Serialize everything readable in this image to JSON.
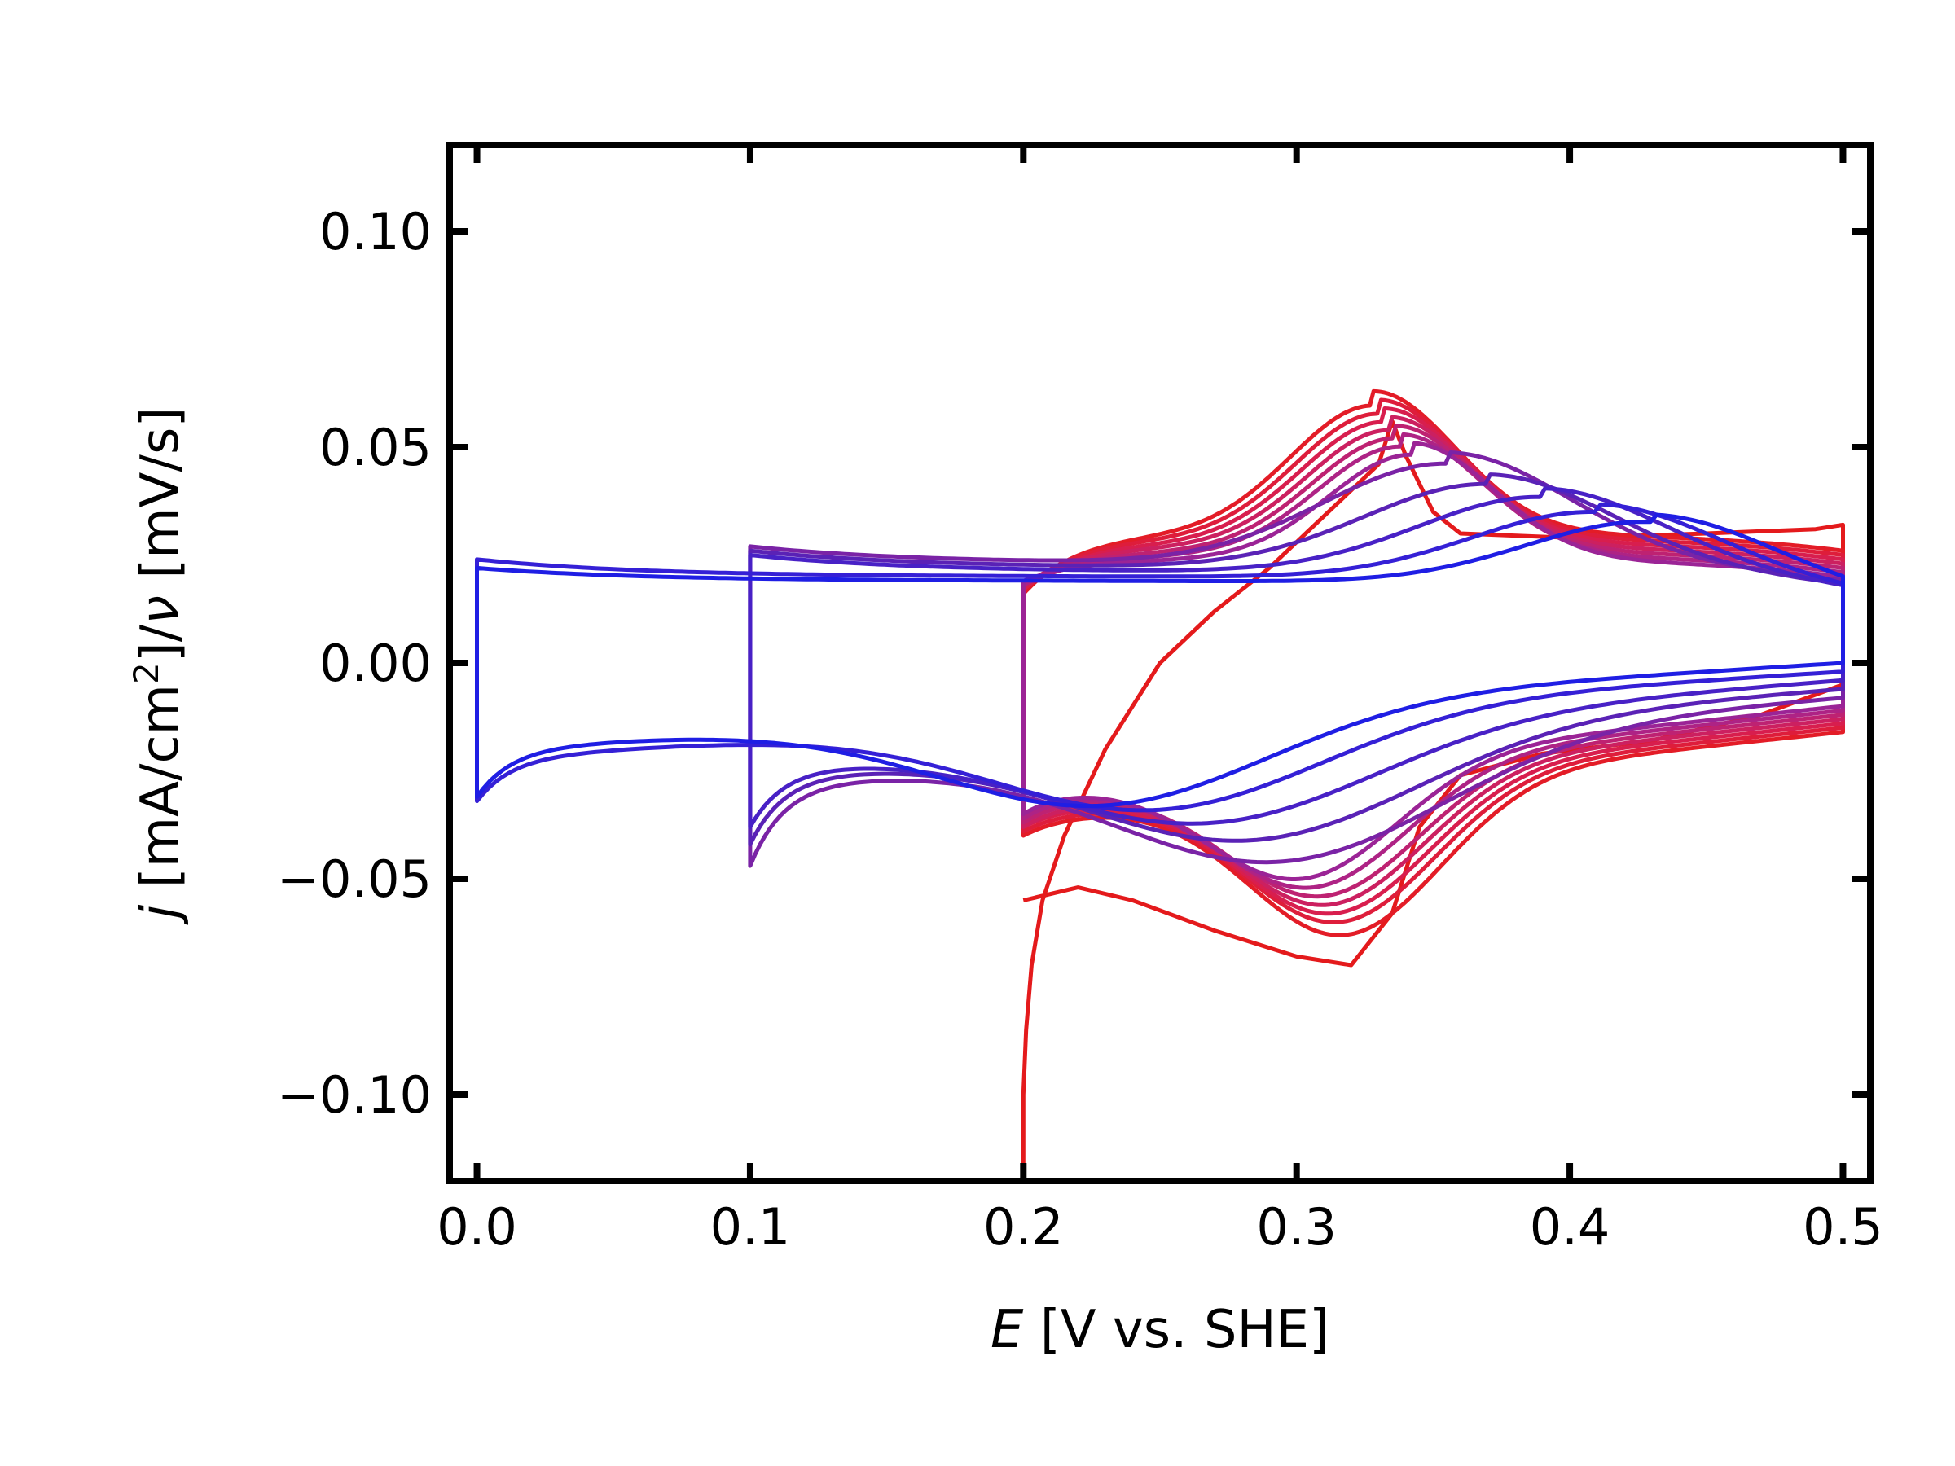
{
  "chart_data": {
    "type": "line",
    "title": "",
    "xlabel": {
      "symbol": "E",
      "rest": " [V vs. SHE]"
    },
    "ylabel": {
      "symbol": "j",
      "part1": " [mA/cm",
      "sup": "2",
      "part2": "]/",
      "nu": "ν",
      "part3": " [mV/s]"
    },
    "xlim": [
      -0.01,
      0.51
    ],
    "ylim": [
      -0.12,
      0.12
    ],
    "x_ticks": [
      {
        "value": 0.0,
        "label": "0.0"
      },
      {
        "value": 0.1,
        "label": "0.1"
      },
      {
        "value": 0.2,
        "label": "0.2"
      },
      {
        "value": 0.3,
        "label": "0.3"
      },
      {
        "value": 0.4,
        "label": "0.4"
      },
      {
        "value": 0.5,
        "label": "0.5"
      }
    ],
    "y_ticks": [
      {
        "value": -0.1,
        "label": "−0.10"
      },
      {
        "value": -0.05,
        "label": "−0.05"
      },
      {
        "value": 0.0,
        "label": "0.00"
      },
      {
        "value": 0.05,
        "label": "0.05"
      },
      {
        "value": 0.1,
        "label": "0.10"
      }
    ],
    "grid": false,
    "legend": "none",
    "color_gradient": {
      "start": "#e41a1c",
      "end": "#1a1ae4"
    },
    "series": [
      {
        "color": "#e41a1c",
        "lower_vertex": 0.2,
        "closed": false,
        "points": [
          [
            0.2,
            -0.12
          ],
          [
            0.2,
            -0.1
          ],
          [
            0.201,
            -0.085
          ],
          [
            0.203,
            -0.07
          ],
          [
            0.207,
            -0.055
          ],
          [
            0.215,
            -0.04
          ],
          [
            0.23,
            -0.02
          ],
          [
            0.25,
            0.0
          ],
          [
            0.27,
            0.012
          ],
          [
            0.29,
            0.022
          ],
          [
            0.31,
            0.034
          ],
          [
            0.33,
            0.046
          ],
          [
            0.335,
            0.056
          ],
          [
            0.34,
            0.048
          ],
          [
            0.35,
            0.035
          ],
          [
            0.36,
            0.03
          ],
          [
            0.4,
            0.029
          ],
          [
            0.45,
            0.03
          ],
          [
            0.49,
            0.031
          ],
          [
            0.5,
            0.032
          ],
          [
            0.5,
            0.005
          ],
          [
            0.5,
            -0.005
          ],
          [
            0.47,
            -0.012
          ],
          [
            0.43,
            -0.018
          ],
          [
            0.39,
            -0.021
          ],
          [
            0.36,
            -0.026
          ],
          [
            0.345,
            -0.038
          ],
          [
            0.335,
            -0.058
          ],
          [
            0.32,
            -0.07
          ],
          [
            0.3,
            -0.068
          ],
          [
            0.27,
            -0.062
          ],
          [
            0.24,
            -0.055
          ],
          [
            0.22,
            -0.052
          ],
          [
            0.2,
            -0.055
          ]
        ]
      },
      {
        "color": "#e31c27",
        "lower_vertex": 0.2,
        "closed": true,
        "peak_a": [
          0.328,
          0.063
        ],
        "peak_c": [
          0.318,
          -0.063
        ],
        "base_a": 0.03,
        "base_c": -0.016,
        "j_start": 0.016,
        "j_end": -0.04
      },
      {
        "color": "#de1d3b",
        "lower_vertex": 0.2,
        "closed": true,
        "peak_a": [
          0.33,
          0.061
        ],
        "peak_c": [
          0.316,
          -0.06
        ],
        "base_a": 0.029,
        "base_c": -0.015,
        "j_start": 0.017,
        "j_end": -0.039
      },
      {
        "color": "#d81e4e",
        "lower_vertex": 0.2,
        "closed": true,
        "peak_a": [
          0.332,
          0.059
        ],
        "peak_c": [
          0.314,
          -0.058
        ],
        "base_a": 0.028,
        "base_c": -0.014,
        "j_start": 0.017,
        "j_end": -0.038
      },
      {
        "color": "#cc2060",
        "lower_vertex": 0.2,
        "closed": true,
        "peak_a": [
          0.334,
          0.057
        ],
        "peak_c": [
          0.312,
          -0.056
        ],
        "base_a": 0.027,
        "base_c": -0.013,
        "j_start": 0.018,
        "j_end": -0.038
      },
      {
        "color": "#be2272",
        "lower_vertex": 0.2,
        "closed": true,
        "peak_a": [
          0.336,
          0.055
        ],
        "peak_c": [
          0.31,
          -0.054
        ],
        "base_a": 0.026,
        "base_c": -0.012,
        "j_start": 0.018,
        "j_end": -0.037
      },
      {
        "color": "#ae2385",
        "lower_vertex": 0.2,
        "closed": true,
        "peak_a": [
          0.338,
          0.053
        ],
        "peak_c": [
          0.306,
          -0.052
        ],
        "base_a": 0.025,
        "base_c": -0.011,
        "j_start": 0.018,
        "j_end": -0.036
      },
      {
        "color": "#9b2496",
        "lower_vertex": 0.2,
        "closed": true,
        "peak_a": [
          0.342,
          0.051
        ],
        "peak_c": [
          0.302,
          -0.05
        ],
        "base_a": 0.024,
        "base_c": -0.01,
        "j_start": 0.019,
        "j_end": -0.035
      },
      {
        "color": "#7a23a6",
        "lower_vertex": 0.1,
        "closed": true,
        "peak_a": [
          0.355,
          0.049
        ],
        "peak_c": [
          0.295,
          -0.046
        ],
        "base_a": 0.023,
        "base_c": -0.008,
        "j_start": 0.027,
        "j_end": -0.047
      },
      {
        "color": "#5a22b6",
        "lower_vertex": 0.1,
        "closed": true,
        "peak_a": [
          0.37,
          0.044
        ],
        "peak_c": [
          0.285,
          -0.041
        ],
        "base_a": 0.022,
        "base_c": -0.006,
        "j_start": 0.026,
        "j_end": -0.042
      },
      {
        "color": "#4821c6",
        "lower_vertex": 0.1,
        "closed": true,
        "peak_a": [
          0.39,
          0.041
        ],
        "peak_c": [
          0.27,
          -0.037
        ],
        "base_a": 0.021,
        "base_c": -0.004,
        "j_start": 0.025,
        "j_end": -0.038
      },
      {
        "color": "#3520d6",
        "lower_vertex": 0.0,
        "closed": true,
        "peak_a": [
          0.41,
          0.038
        ],
        "peak_c": [
          0.25,
          -0.034
        ],
        "base_a": 0.02,
        "base_c": -0.002,
        "j_start": 0.024,
        "j_end": -0.032
      },
      {
        "color": "#1f1ee4",
        "lower_vertex": 0.0,
        "closed": true,
        "peak_a": [
          0.43,
          0.036
        ],
        "peak_c": [
          0.23,
          -0.033
        ],
        "base_a": 0.019,
        "base_c": 0.0,
        "j_start": 0.022,
        "j_end": -0.031
      }
    ]
  }
}
